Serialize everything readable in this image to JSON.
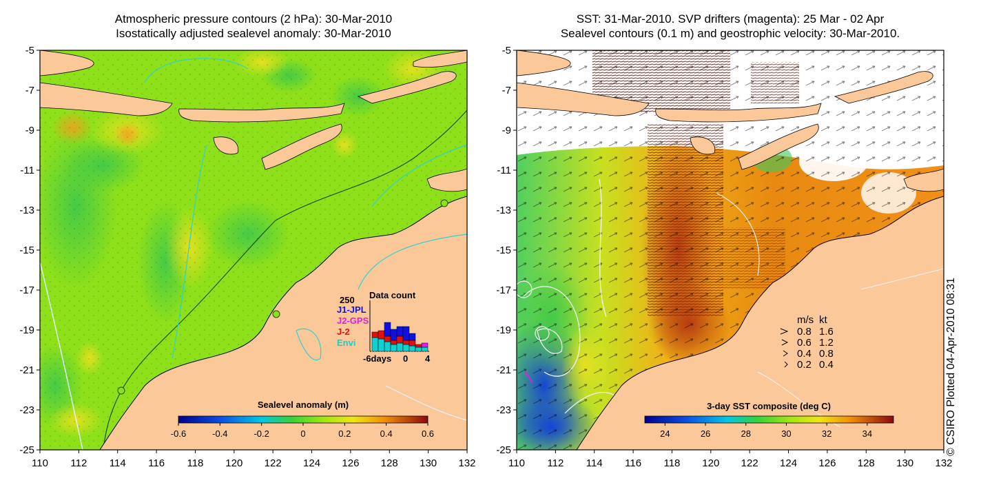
{
  "left_panel": {
    "title_line1": "Atmospheric pressure contours (2 hPa): 30-Mar-2010",
    "title_line2": "Isostatically adjusted sealevel anomaly: 30-Mar-2010",
    "x_ticks": [
      "110",
      "112",
      "114",
      "116",
      "118",
      "120",
      "122",
      "124",
      "126",
      "128",
      "130",
      "132"
    ],
    "y_ticks": [
      "-5",
      "-7",
      "-9",
      "-11",
      "-13",
      "-15",
      "-17",
      "-19",
      "-21",
      "-23",
      "-25"
    ],
    "colorbar_title": "Sealevel anomaly (m)",
    "colorbar_ticks": [
      "-0.6",
      "-0.4",
      "-0.2",
      "0",
      "0.2",
      "0.4",
      "0.6"
    ],
    "colorbar_range": [
      -0.6,
      0.6
    ],
    "inset": {
      "title": "Data count",
      "y_max_label": "250",
      "x_labels": [
        "-6days",
        "0",
        "4"
      ],
      "legend": [
        {
          "label": "J1-JPL",
          "color": "#1010e0"
        },
        {
          "label": "J2-GPS",
          "color": "#e020e0"
        },
        {
          "label": "J-2",
          "color": "#e01010"
        },
        {
          "label": "Envi",
          "color": "#10d0d0"
        }
      ]
    }
  },
  "right_panel": {
    "title_line1": "SST: 31-Mar-2010. SVP drifters (magenta): 25 Mar - 02 Apr",
    "title_line2": "Sealevel contours (0.1 m) and geostrophic velocity: 30-Mar-2010.",
    "x_ticks": [
      "110",
      "112",
      "114",
      "116",
      "118",
      "120",
      "122",
      "124",
      "126",
      "128",
      "130",
      "132"
    ],
    "y_ticks": [
      "-5",
      "-7",
      "-9",
      "-11",
      "-13",
      "-15",
      "-17",
      "-19",
      "-21",
      "-23",
      "-25"
    ],
    "colorbar_title": "3-day SST composite (deg C)",
    "colorbar_ticks": [
      "24",
      "26",
      "28",
      "30",
      "32",
      "34"
    ],
    "colorbar_range": [
      23,
      35.3
    ],
    "velocity_legend": {
      "header_ms": "m/s",
      "header_kt": "kt",
      "rows": [
        {
          "ms": "0.8",
          "kt": "1.6"
        },
        {
          "ms": "0.6",
          "kt": "1.2"
        },
        {
          "ms": "0.4",
          "kt": "0.8"
        },
        {
          "ms": "0.2",
          "kt": "0.4"
        }
      ]
    }
  },
  "credit": "© CSIRO Plotted 04-Apr-2010 08:31",
  "colors": {
    "land": "#fbc89a",
    "ocean_mid": "#8ee01a",
    "sst_warm": "#e88a10"
  }
}
